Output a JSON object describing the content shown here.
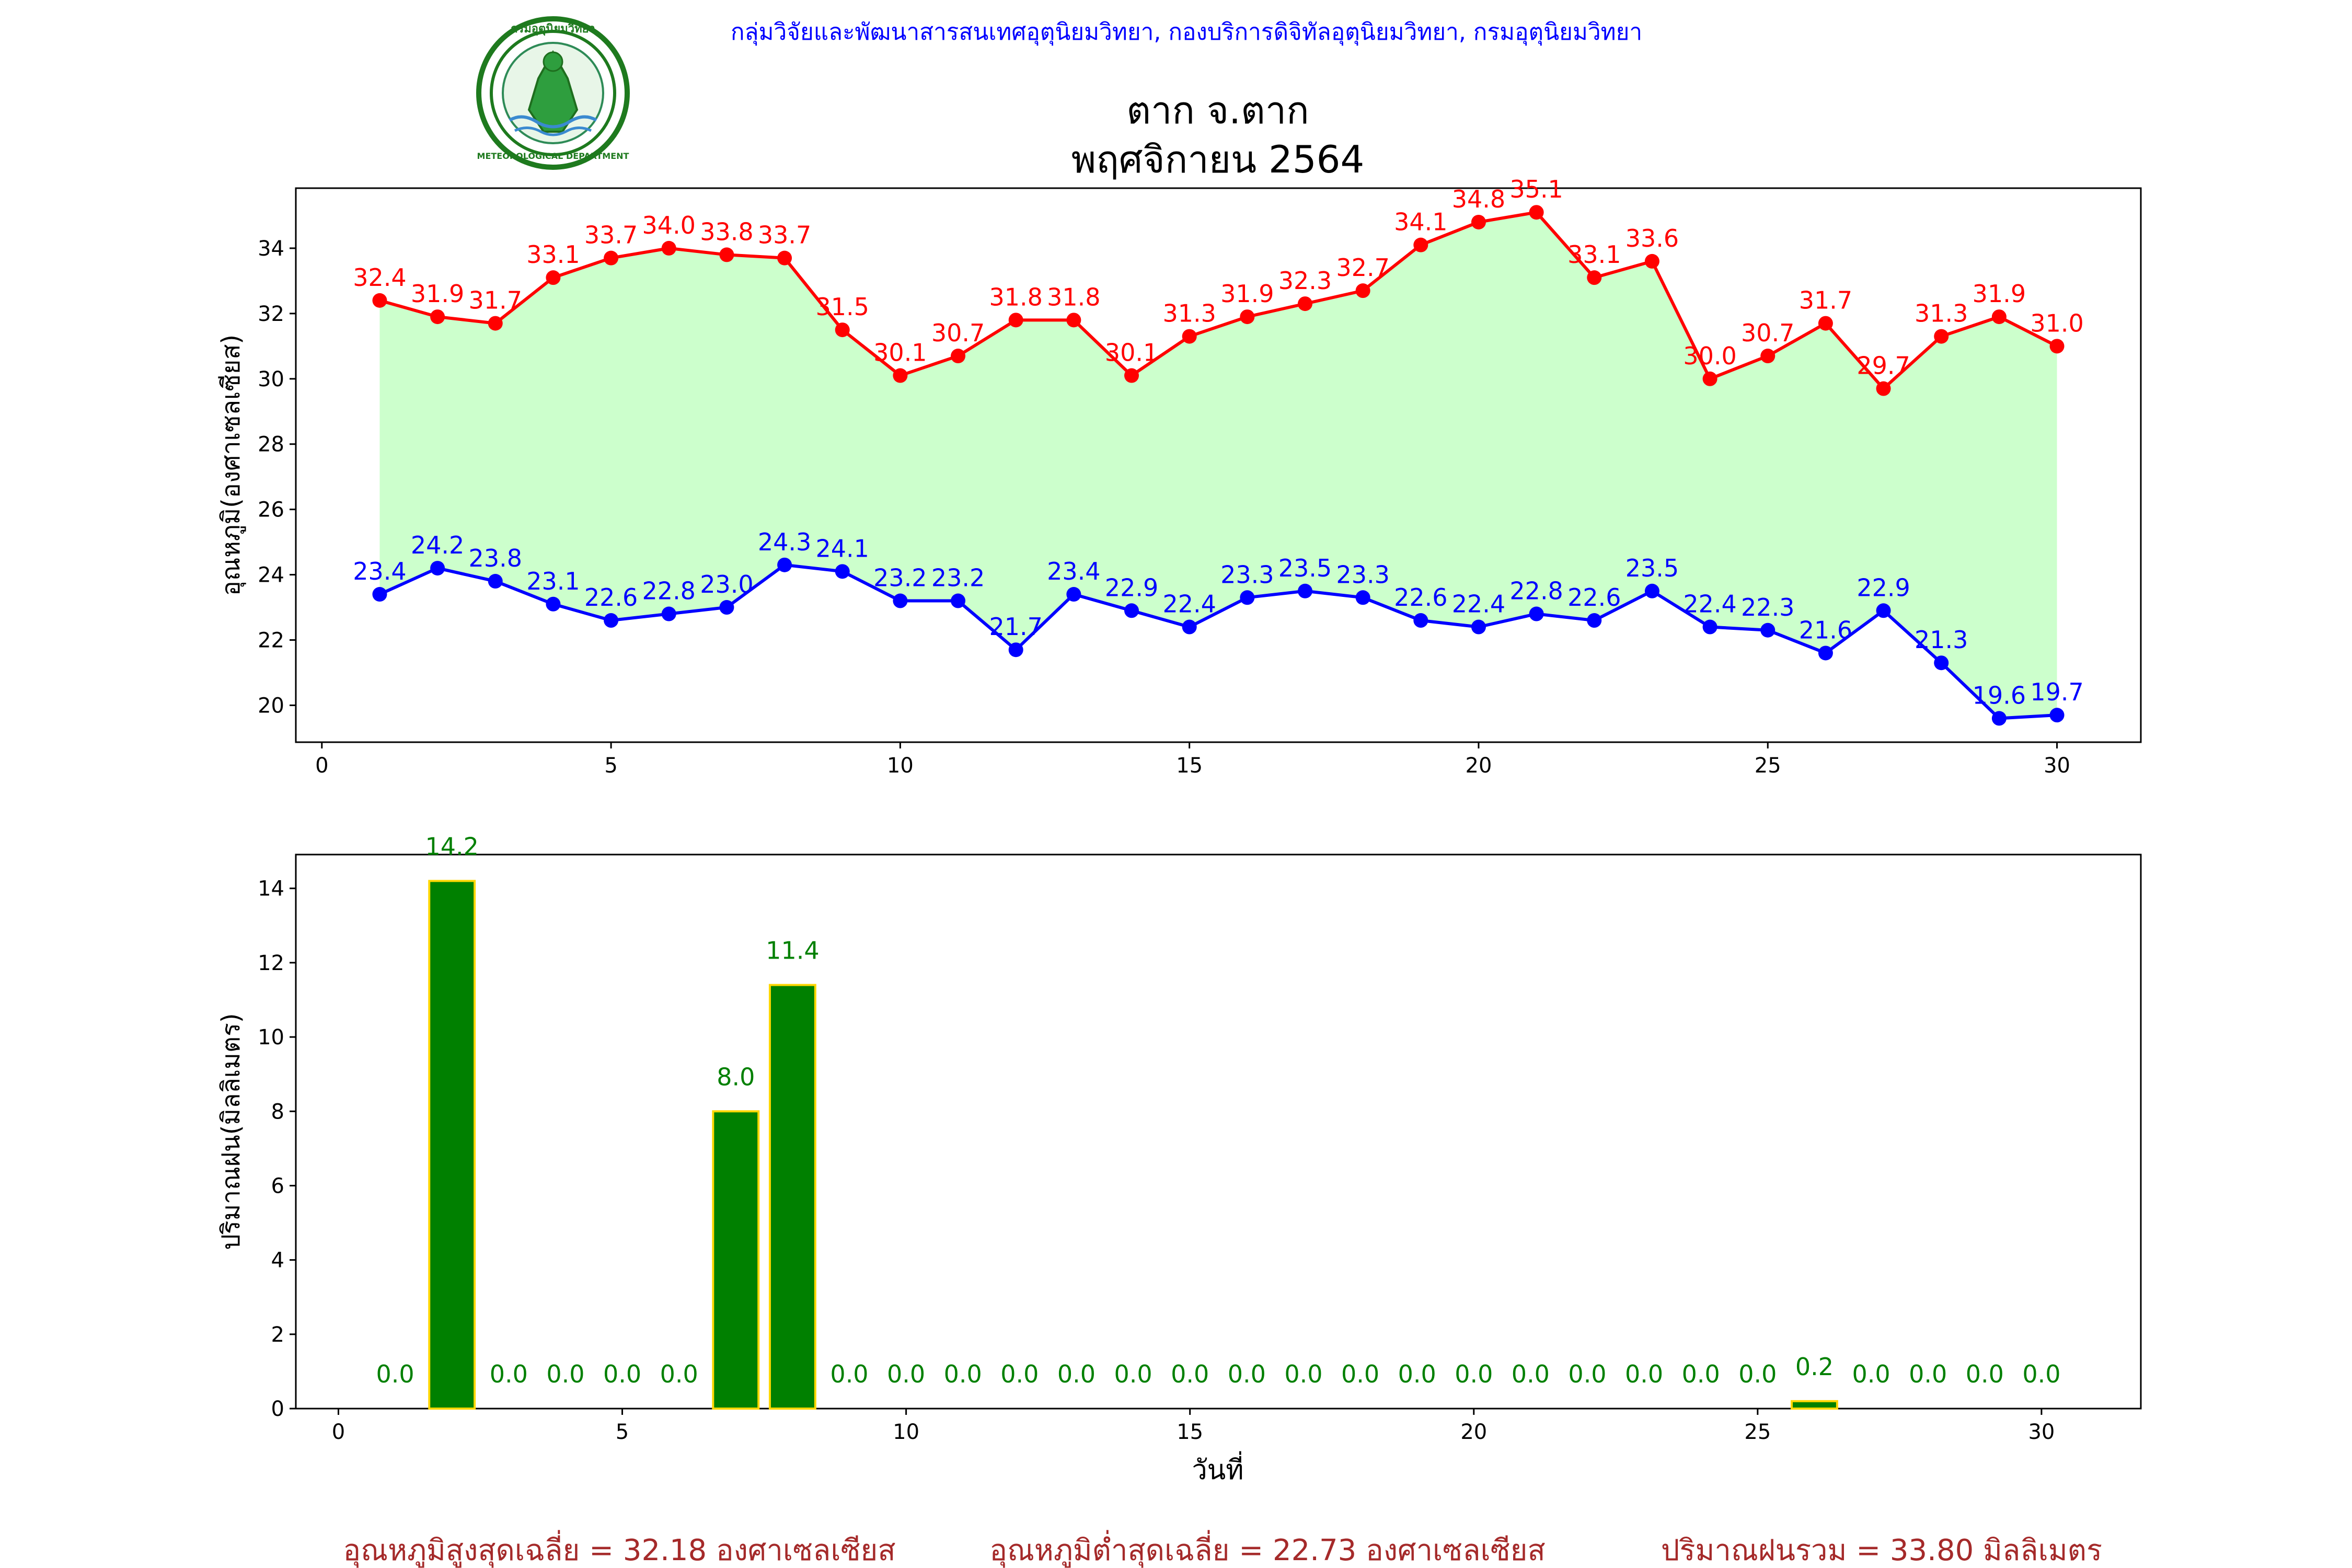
{
  "header": {
    "credit": "กลุ่มวิจัยและพัฒนาสารสนเทศอุตุนิยมวิทยา, กองบริการดิจิทัลอุตุนิยมวิทยา, กรมอุตุนิยมวิทยา",
    "logo_text": "กรมอุตุนิยมวิทยา",
    "logo_text_en": "METEOROLOGICAL DEPARTMENT",
    "title_line1": "ตาก จ.ตาก",
    "title_line2": "พฤศจิกายน 2564"
  },
  "colors": {
    "max_line": "#ff0000",
    "min_line": "#0000ff",
    "fill_between": "#ccffcc",
    "bar_fill": "#008000",
    "bar_edge": "#ffd700",
    "footer": "#a52a2a"
  },
  "chart_data": [
    {
      "type": "line",
      "x": [
        1,
        2,
        3,
        4,
        5,
        6,
        7,
        8,
        9,
        10,
        11,
        12,
        13,
        14,
        15,
        16,
        17,
        18,
        19,
        20,
        21,
        22,
        23,
        24,
        25,
        26,
        27,
        28,
        29,
        30
      ],
      "series": [
        {
          "values": [
            32.4,
            31.9,
            31.7,
            33.1,
            33.7,
            34.0,
            33.8,
            33.7,
            31.5,
            30.1,
            30.7,
            31.8,
            31.8,
            30.1,
            31.3,
            31.9,
            32.3,
            32.7,
            34.1,
            34.8,
            35.1,
            33.1,
            33.6,
            30.0,
            30.7,
            31.7,
            29.7,
            31.3,
            31.9,
            31.0
          ],
          "labels": [
            "32.4",
            "31.9",
            "31.7",
            "33.1",
            "33.7",
            "34.0",
            "33.8",
            "33.7",
            "31.5",
            "30.1",
            "30.7",
            "31.8",
            "31.8",
            "30.1",
            "31.3",
            "31.9",
            "32.3",
            "32.7",
            "34.1",
            "34.8",
            "35.1",
            "33.1",
            "33.6",
            "30.0",
            "30.7",
            "31.7",
            "29.7",
            "31.3",
            "31.9",
            "31.0"
          ],
          "color": "#ff0000"
        },
        {
          "values": [
            23.4,
            24.2,
            23.8,
            23.1,
            22.6,
            22.8,
            23.0,
            24.3,
            24.1,
            23.2,
            23.2,
            21.7,
            23.4,
            22.9,
            22.4,
            23.3,
            23.5,
            23.3,
            22.6,
            22.4,
            22.8,
            22.6,
            23.5,
            22.4,
            22.3,
            21.6,
            22.9,
            21.3,
            19.6,
            19.7
          ],
          "labels": [
            "23.4",
            "24.2",
            "23.8",
            "23.1",
            "22.6",
            "22.8",
            "23.0",
            "24.3",
            "24.1",
            "23.2",
            "23.2",
            "21.7",
            "23.4",
            "22.9",
            "22.4",
            "23.3",
            "23.5",
            "23.3",
            "22.6",
            "22.4",
            "22.8",
            "22.6",
            "23.5",
            "22.4",
            "22.3",
            "21.6",
            "22.9",
            "21.3",
            "19.6",
            "19.7"
          ],
          "color": "#0000ff"
        }
      ],
      "ylabel": "อุณหภูมิ(องศาเซลเซียส)",
      "xlim": [
        -0.45,
        31.45
      ],
      "ylim": [
        18.87,
        35.84
      ],
      "xticks": [
        0,
        5,
        10,
        15,
        20,
        25,
        30
      ],
      "xtick_labels": [
        "0",
        "5",
        "10",
        "15",
        "20",
        "25",
        "30"
      ],
      "yticks": [
        20,
        22,
        24,
        26,
        28,
        30,
        32,
        34
      ],
      "ytick_labels": [
        "20",
        "22",
        "24",
        "26",
        "28",
        "30",
        "32",
        "34"
      ],
      "fill_between_series": true
    },
    {
      "type": "bar",
      "x": [
        1,
        2,
        3,
        4,
        5,
        6,
        7,
        8,
        9,
        10,
        11,
        12,
        13,
        14,
        15,
        16,
        17,
        18,
        19,
        20,
        21,
        22,
        23,
        24,
        25,
        26,
        27,
        28,
        29,
        30
      ],
      "values": [
        0.0,
        14.2,
        0.0,
        0.0,
        0.0,
        0.0,
        8.0,
        11.4,
        0.0,
        0.0,
        0.0,
        0.0,
        0.0,
        0.0,
        0.0,
        0.0,
        0.0,
        0.0,
        0.0,
        0.0,
        0.0,
        0.0,
        0.0,
        0.0,
        0.0,
        0.2,
        0.0,
        0.0,
        0.0,
        0.0
      ],
      "labels": [
        "0.0",
        "14.2",
        "0.0",
        "0.0",
        "0.0",
        "0.0",
        "8.0",
        "11.4",
        "0.0",
        "0.0",
        "0.0",
        "0.0",
        "0.0",
        "0.0",
        "0.0",
        "0.0",
        "0.0",
        "0.0",
        "0.0",
        "0.0",
        "0.0",
        "0.0",
        "0.0",
        "0.0",
        "0.0",
        "0.2",
        "0.0",
        "0.0",
        "0.0",
        "0.0"
      ],
      "xlabel": "วันที่",
      "ylabel": "ปริมาณฝน(มิลลิเมตร)",
      "xlim": [
        -0.75,
        31.75
      ],
      "ylim": [
        0,
        14.91
      ],
      "xticks": [
        0,
        5,
        10,
        15,
        20,
        25,
        30
      ],
      "xtick_labels": [
        "0",
        "5",
        "10",
        "15",
        "20",
        "25",
        "30"
      ],
      "yticks": [
        0,
        2,
        4,
        6,
        8,
        10,
        12,
        14
      ],
      "ytick_labels": [
        "0",
        "2",
        "4",
        "6",
        "8",
        "10",
        "12",
        "14"
      ]
    }
  ],
  "footer": {
    "avg_max": "อุณหภูมิสูงสุดเฉลี่ย = 32.18 องศาเซลเซียส",
    "avg_min": "อุณหภูมิต่ำสุดเฉลี่ย = 22.73 องศาเซลเซียส",
    "total_rain": "ปริมาณฝนรวม = 33.80 มิลลิเมตร"
  }
}
